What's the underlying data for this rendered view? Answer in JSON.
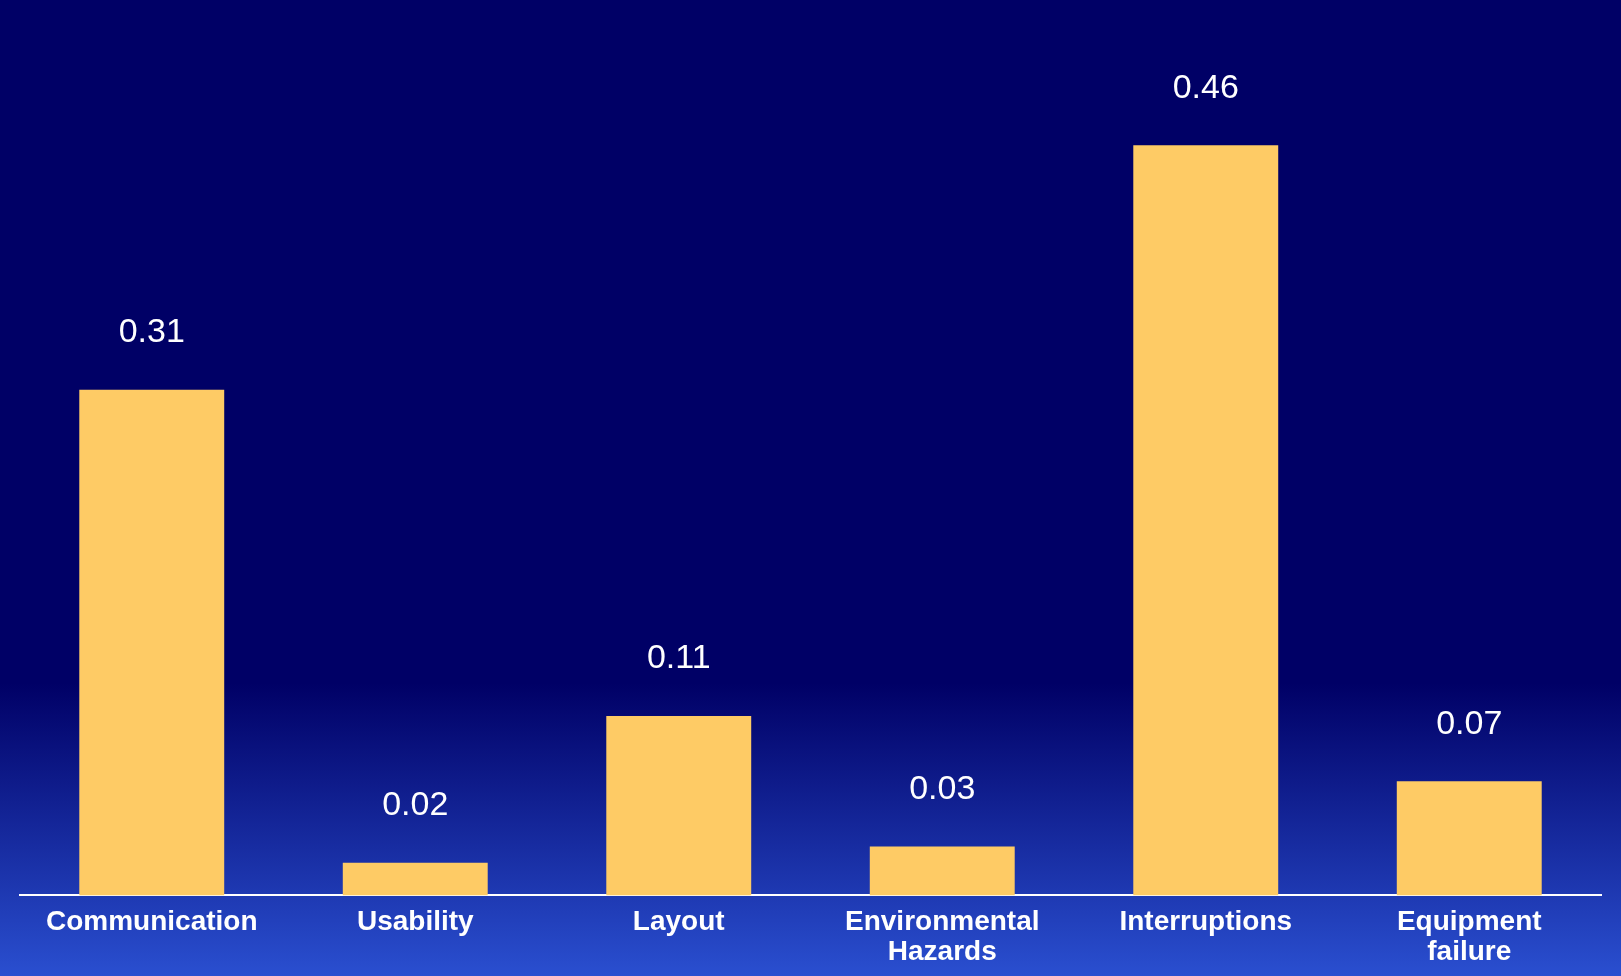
{
  "chart_data": {
    "type": "bar",
    "categories": [
      "Communication",
      "Usability",
      "Layout",
      "Environmental Hazards",
      "Interruptions",
      "Equipment failure"
    ],
    "values": [
      0.31,
      0.02,
      0.11,
      0.03,
      0.46,
      0.07
    ],
    "color": "#fecb65",
    "data_labels": true,
    "grid": false,
    "legend": false
  }
}
